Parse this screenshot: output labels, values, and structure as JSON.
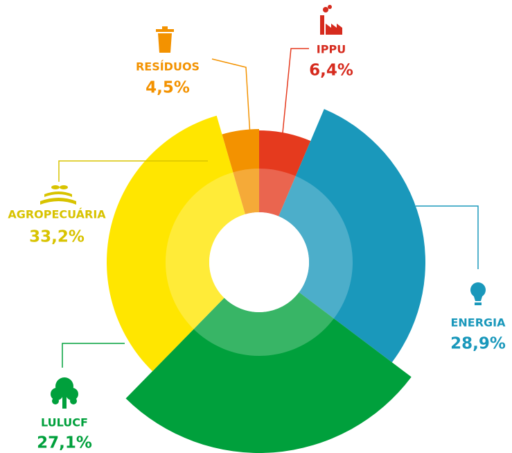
{
  "chart_data": {
    "type": "pie",
    "categories": [
      "IPPU",
      "ENERGIA",
      "LULUCF",
      "AGROPECUÁRIA",
      "RESÍDUOS"
    ],
    "values": [
      6.4,
      28.9,
      27.1,
      33.2,
      4.5
    ],
    "value_labels": [
      "6,4%",
      "28,9%",
      "27,1%",
      "33,2%",
      "4,5%"
    ],
    "colors": [
      "#e53a1e",
      "#1a98bb",
      "#00a03c",
      "#ffe600",
      "#f39200"
    ]
  }
}
